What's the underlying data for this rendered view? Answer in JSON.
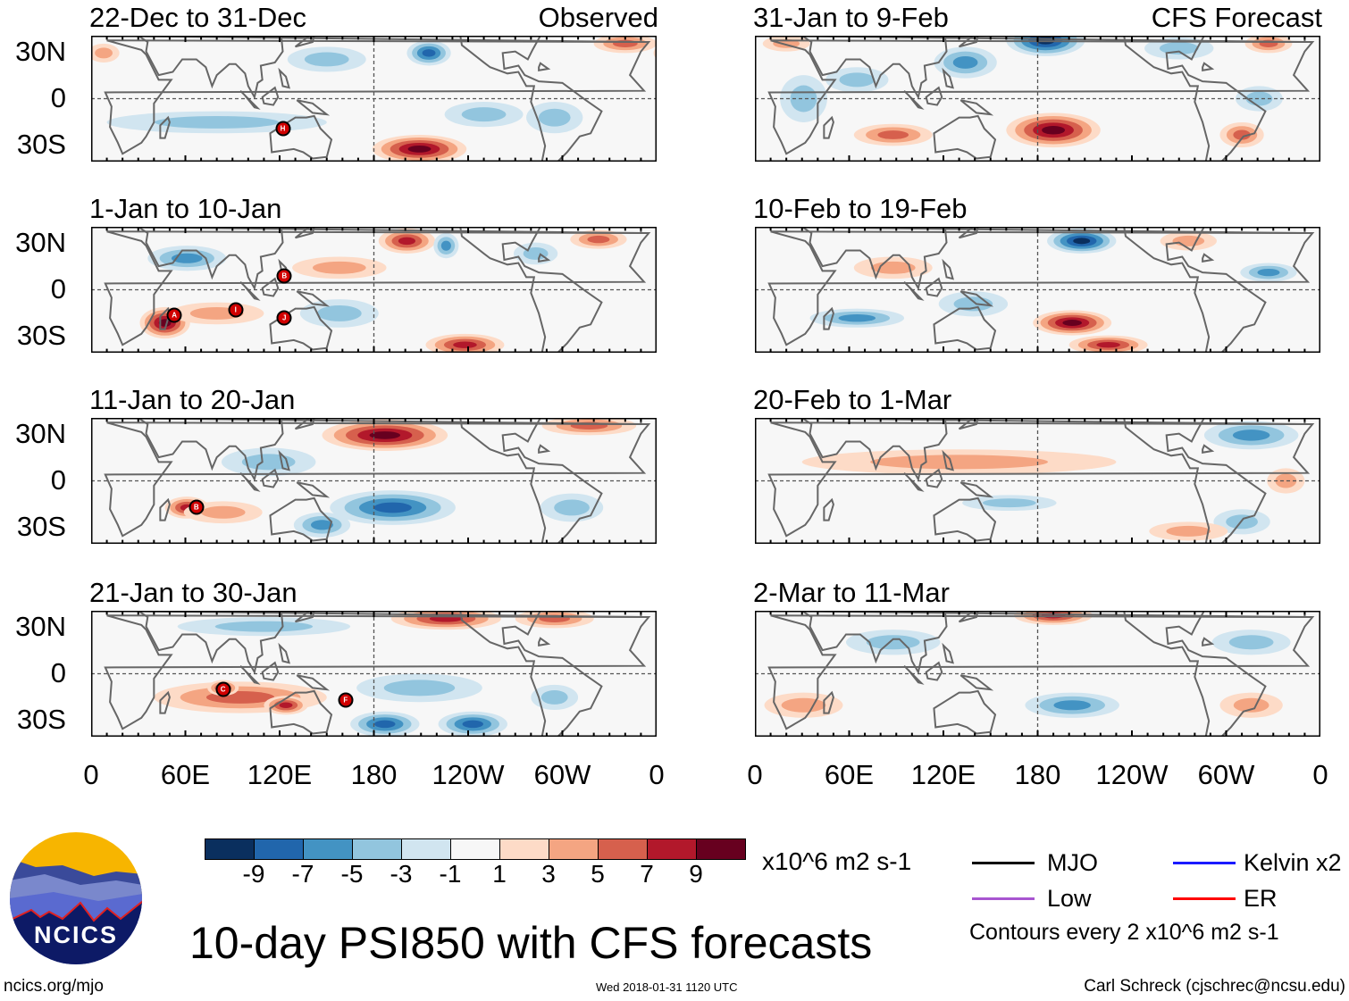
{
  "title": "10-day PSI850 with CFS forecasts",
  "axes": {
    "y_ticks": [
      "30N",
      "0",
      "30S"
    ],
    "x_ticks": [
      "0",
      "60E",
      "120E",
      "180",
      "120W",
      "60W",
      "0"
    ]
  },
  "colorbar": {
    "labels": [
      "-9",
      "-7",
      "-5",
      "-3",
      "-1",
      "1",
      "3",
      "5",
      "7",
      "9"
    ],
    "colors": [
      "#0a2f5e",
      "#2166ac",
      "#4393c3",
      "#92c5de",
      "#d1e5f0",
      "#f7f7f7",
      "#fddbc7",
      "#f4a582",
      "#d6604d",
      "#b2182b",
      "#67001f"
    ],
    "units": "x10^6 m2 s-1"
  },
  "legend": {
    "items": [
      {
        "label": "MJO",
        "color": "#000000"
      },
      {
        "label": "Kelvin x2",
        "color": "#1a1aff"
      },
      {
        "label": "Low",
        "color": "#a855d0"
      },
      {
        "label": "ER",
        "color": "#ff0000"
      }
    ],
    "contours": "Contours every 2 x10^6 m2 s-1"
  },
  "footer": {
    "url": "ncics.org/mjo",
    "timestamp": "Wed 2018-01-31 1120 UTC",
    "author": "Carl Schreck (cjschrec@ncsu.edu)",
    "logo_text": "NCICS"
  },
  "chart_data": {
    "type": "heatmap",
    "variable": "850-hPa streamfunction anomaly",
    "units": "x10^6 m2 s-1",
    "lon_range": [
      0,
      360
    ],
    "lat_range": [
      -40,
      40
    ],
    "panels": [
      {
        "title": "22-Dec to 31-Dec",
        "tag": "Observed",
        "anomalies": [
          [
            215,
            29,
            14,
            8,
            -7
          ],
          [
            209,
            -32,
            30,
            9,
            9
          ],
          [
            340,
            35,
            20,
            6,
            5
          ],
          [
            295,
            -12,
            18,
            10,
            -3
          ],
          [
            80,
            -15,
            70,
            7,
            -2
          ],
          [
            8,
            29,
            10,
            6,
            2
          ],
          [
            250,
            -10,
            25,
            8,
            -2
          ],
          [
            150,
            25,
            25,
            8,
            -2
          ]
        ],
        "storms": [
          {
            "id": "H",
            "lon": 122,
            "lat": -19
          }
        ]
      },
      {
        "title": "1-Jan to 10-Jan",
        "tag": "",
        "anomalies": [
          [
            201,
            31,
            18,
            8,
            7
          ],
          [
            323,
            32,
            18,
            6,
            5
          ],
          [
            226,
            28,
            8,
            8,
            -5
          ],
          [
            61,
            20,
            25,
            8,
            -5
          ],
          [
            47,
            -21,
            16,
            10,
            9
          ],
          [
            80,
            -15,
            30,
            7,
            3
          ],
          [
            238,
            -35,
            25,
            7,
            7
          ],
          [
            158,
            -15,
            25,
            9,
            -3
          ],
          [
            158,
            14,
            30,
            7,
            3
          ],
          [
            283,
            23,
            14,
            7,
            -3
          ]
        ],
        "storms": [
          {
            "id": "A",
            "lon": 53,
            "lat": -16
          },
          {
            "id": "I",
            "lon": 92,
            "lat": -13
          },
          {
            "id": "B",
            "lon": 123,
            "lat": 9
          },
          {
            "id": "J",
            "lon": 123,
            "lat": -18
          }
        ]
      },
      {
        "title": "11-Jan to 20-Jan",
        "tag": "",
        "anomalies": [
          [
            187,
            29,
            40,
            10,
            9
          ],
          [
            317,
            35,
            30,
            6,
            5
          ],
          [
            192,
            -17,
            40,
            11,
            -7
          ],
          [
            113,
            12,
            30,
            9,
            -3
          ],
          [
            61,
            -17,
            14,
            7,
            7
          ],
          [
            84,
            -20,
            25,
            7,
            3
          ],
          [
            306,
            -17,
            20,
            9,
            -3
          ],
          [
            147,
            -28,
            18,
            8,
            -5
          ]
        ],
        "storms": [
          {
            "id": "B",
            "lon": 67,
            "lat": -17
          }
        ]
      },
      {
        "title": "21-Jan to 30-Jan",
        "tag": "",
        "anomalies": [
          [
            226,
            35,
            35,
            7,
            7
          ],
          [
            295,
            35,
            25,
            6,
            5
          ],
          [
            95,
            -15,
            55,
            10,
            5
          ],
          [
            124,
            -20,
            14,
            6,
            7
          ],
          [
            84,
            -9,
            10,
            5,
            7
          ],
          [
            187,
            -32,
            22,
            8,
            -7
          ],
          [
            243,
            -32,
            22,
            8,
            -7
          ],
          [
            209,
            -9,
            40,
            9,
            -3
          ],
          [
            110,
            30,
            55,
            6,
            -2
          ],
          [
            295,
            -15,
            15,
            8,
            -3
          ]
        ],
        "storms": [
          {
            "id": "C",
            "lon": 84,
            "lat": -10
          },
          {
            "id": "F",
            "lon": 162,
            "lat": -17
          }
        ]
      },
      {
        "title": "31-Jan to 9-Feb",
        "tag": "CFS Forecast",
        "anomalies": [
          [
            185,
            37,
            25,
            10,
            -9
          ],
          [
            134,
            23,
            20,
            10,
            -5
          ],
          [
            270,
            32,
            22,
            7,
            -3
          ],
          [
            190,
            -20,
            30,
            11,
            9
          ],
          [
            88,
            -23,
            25,
            7,
            5
          ],
          [
            310,
            -23,
            14,
            8,
            5
          ],
          [
            327,
            35,
            15,
            6,
            5
          ],
          [
            321,
            0,
            15,
            8,
            -3
          ],
          [
            31,
            0,
            15,
            15,
            -3
          ],
          [
            20,
            35,
            15,
            5,
            3
          ],
          [
            65,
            12,
            20,
            8,
            -3
          ]
        ],
        "storms": []
      },
      {
        "title": "10-Feb to 19-Feb",
        "tag": "",
        "anomalies": [
          [
            208,
            31,
            22,
            8,
            -9
          ],
          [
            327,
            11,
            18,
            6,
            -5
          ],
          [
            202,
            -21,
            25,
            8,
            9
          ],
          [
            225,
            -35,
            25,
            6,
            7
          ],
          [
            65,
            -18,
            30,
            6,
            -5
          ],
          [
            88,
            14,
            25,
            7,
            3
          ],
          [
            139,
            -9,
            22,
            8,
            -3
          ],
          [
            276,
            31,
            18,
            6,
            3
          ]
        ],
        "storms": []
      },
      {
        "title": "20-Feb to 1-Mar",
        "tag": "",
        "anomalies": [
          [
            316,
            29,
            30,
            9,
            -5
          ],
          [
            310,
            -26,
            18,
            8,
            -3
          ],
          [
            130,
            12,
            100,
            8,
            2
          ],
          [
            276,
            -32,
            25,
            6,
            3
          ],
          [
            162,
            -14,
            30,
            5,
            -2
          ],
          [
            338,
            0,
            12,
            8,
            3
          ]
        ],
        "storms": []
      },
      {
        "title": "2-Mar to 11-Mar",
        "tag": "",
        "anomalies": [
          [
            190,
            37,
            25,
            6,
            7
          ],
          [
            202,
            -20,
            30,
            8,
            -5
          ],
          [
            316,
            20,
            25,
            8,
            -3
          ],
          [
            316,
            -20,
            20,
            8,
            3
          ],
          [
            31,
            -20,
            25,
            8,
            3
          ],
          [
            88,
            20,
            30,
            8,
            -2
          ]
        ],
        "storms": []
      }
    ]
  }
}
